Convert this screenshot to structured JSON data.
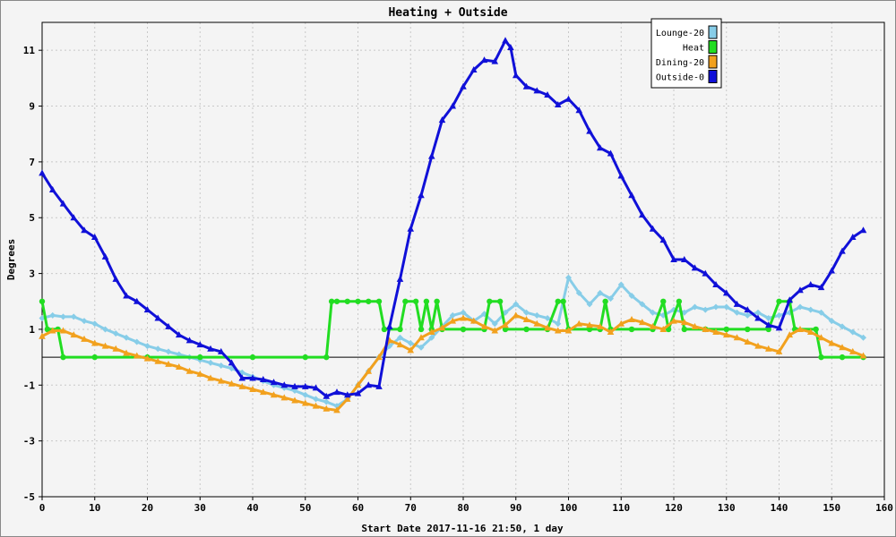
{
  "chart_data": {
    "type": "line",
    "title": "Heating + Outside",
    "xlabel": "Start Date 2017-11-16 21:50, 1 day",
    "ylabel": "Degrees",
    "xlim": [
      0,
      160
    ],
    "ylim": [
      -5,
      12
    ],
    "xticks": [
      0,
      10,
      20,
      30,
      40,
      50,
      60,
      70,
      80,
      90,
      100,
      110,
      120,
      130,
      140,
      150,
      160
    ],
    "yticks": [
      -5,
      -3,
      -1,
      1,
      3,
      5,
      7,
      9,
      11
    ],
    "grid": true,
    "zero_line": true,
    "legend_position": "top-right",
    "series": [
      {
        "name": "Lounge-20",
        "color": "#87cde8",
        "marker": "diamond",
        "points": [
          [
            0,
            1.4
          ],
          [
            2,
            1.5
          ],
          [
            4,
            1.45
          ],
          [
            6,
            1.45
          ],
          [
            8,
            1.3
          ],
          [
            10,
            1.2
          ],
          [
            12,
            1.0
          ],
          [
            14,
            0.85
          ],
          [
            16,
            0.7
          ],
          [
            18,
            0.55
          ],
          [
            20,
            0.4
          ],
          [
            22,
            0.3
          ],
          [
            24,
            0.2
          ],
          [
            26,
            0.1
          ],
          [
            28,
            0.0
          ],
          [
            30,
            -0.1
          ],
          [
            32,
            -0.2
          ],
          [
            34,
            -0.3
          ],
          [
            36,
            -0.4
          ],
          [
            38,
            -0.55
          ],
          [
            40,
            -0.7
          ],
          [
            42,
            -0.85
          ],
          [
            44,
            -1.0
          ],
          [
            46,
            -1.1
          ],
          [
            48,
            -1.2
          ],
          [
            50,
            -1.35
          ],
          [
            52,
            -1.5
          ],
          [
            54,
            -1.6
          ],
          [
            56,
            -1.75
          ],
          [
            58,
            -1.5
          ],
          [
            60,
            -1.0
          ],
          [
            62,
            -0.5
          ],
          [
            64,
            0.0
          ],
          [
            66,
            0.4
          ],
          [
            68,
            0.7
          ],
          [
            70,
            0.5
          ],
          [
            72,
            0.35
          ],
          [
            74,
            0.7
          ],
          [
            76,
            1.1
          ],
          [
            78,
            1.5
          ],
          [
            80,
            1.6
          ],
          [
            82,
            1.3
          ],
          [
            84,
            1.55
          ],
          [
            86,
            1.2
          ],
          [
            88,
            1.6
          ],
          [
            90,
            1.9
          ],
          [
            92,
            1.6
          ],
          [
            94,
            1.5
          ],
          [
            96,
            1.4
          ],
          [
            98,
            1.2
          ],
          [
            100,
            2.85
          ],
          [
            102,
            2.3
          ],
          [
            104,
            1.9
          ],
          [
            106,
            2.3
          ],
          [
            108,
            2.1
          ],
          [
            110,
            2.6
          ],
          [
            112,
            2.2
          ],
          [
            114,
            1.9
          ],
          [
            116,
            1.6
          ],
          [
            118,
            1.5
          ],
          [
            120,
            1.7
          ],
          [
            122,
            1.6
          ],
          [
            124,
            1.8
          ],
          [
            126,
            1.7
          ],
          [
            128,
            1.8
          ],
          [
            130,
            1.8
          ],
          [
            132,
            1.6
          ],
          [
            134,
            1.5
          ],
          [
            136,
            1.6
          ],
          [
            138,
            1.4
          ],
          [
            140,
            1.5
          ],
          [
            142,
            1.6
          ],
          [
            144,
            1.8
          ],
          [
            146,
            1.7
          ],
          [
            148,
            1.6
          ],
          [
            150,
            1.3
          ],
          [
            152,
            1.1
          ],
          [
            154,
            0.9
          ],
          [
            156,
            0.7
          ]
        ]
      },
      {
        "name": "Heat",
        "color": "#22dd22",
        "marker": "circle",
        "points": [
          [
            0,
            2
          ],
          [
            1,
            1
          ],
          [
            3,
            1
          ],
          [
            4,
            0
          ],
          [
            10,
            0
          ],
          [
            20,
            0
          ],
          [
            30,
            0
          ],
          [
            40,
            0
          ],
          [
            50,
            0
          ],
          [
            54,
            0
          ],
          [
            55,
            2
          ],
          [
            56,
            2
          ],
          [
            58,
            2
          ],
          [
            60,
            2
          ],
          [
            62,
            2
          ],
          [
            64,
            2
          ],
          [
            65,
            1
          ],
          [
            68,
            1
          ],
          [
            69,
            2
          ],
          [
            71,
            2
          ],
          [
            72,
            1
          ],
          [
            73,
            2
          ],
          [
            74,
            1
          ],
          [
            75,
            2
          ],
          [
            76,
            1
          ],
          [
            80,
            1
          ],
          [
            84,
            1
          ],
          [
            85,
            2
          ],
          [
            87,
            2
          ],
          [
            88,
            1
          ],
          [
            92,
            1
          ],
          [
            96,
            1
          ],
          [
            98,
            2
          ],
          [
            99,
            2
          ],
          [
            100,
            1
          ],
          [
            104,
            1
          ],
          [
            106,
            1
          ],
          [
            107,
            2
          ],
          [
            108,
            1
          ],
          [
            112,
            1
          ],
          [
            116,
            1
          ],
          [
            118,
            2
          ],
          [
            119,
            1
          ],
          [
            121,
            2
          ],
          [
            122,
            1
          ],
          [
            126,
            1
          ],
          [
            130,
            1
          ],
          [
            134,
            1
          ],
          [
            138,
            1
          ],
          [
            140,
            2
          ],
          [
            142,
            2
          ],
          [
            143,
            1
          ],
          [
            147,
            1
          ],
          [
            148,
            0
          ],
          [
            152,
            0
          ],
          [
            156,
            0
          ]
        ]
      },
      {
        "name": "Dining-20",
        "color": "#f2a11e",
        "marker": "triangle",
        "points": [
          [
            0,
            0.75
          ],
          [
            2,
            0.95
          ],
          [
            4,
            0.95
          ],
          [
            6,
            0.8
          ],
          [
            8,
            0.65
          ],
          [
            10,
            0.5
          ],
          [
            12,
            0.4
          ],
          [
            14,
            0.3
          ],
          [
            16,
            0.15
          ],
          [
            18,
            0.05
          ],
          [
            20,
            -0.05
          ],
          [
            22,
            -0.15
          ],
          [
            24,
            -0.25
          ],
          [
            26,
            -0.35
          ],
          [
            28,
            -0.5
          ],
          [
            30,
            -0.6
          ],
          [
            32,
            -0.75
          ],
          [
            34,
            -0.85
          ],
          [
            36,
            -0.95
          ],
          [
            38,
            -1.05
          ],
          [
            40,
            -1.15
          ],
          [
            42,
            -1.25
          ],
          [
            44,
            -1.35
          ],
          [
            46,
            -1.45
          ],
          [
            48,
            -1.55
          ],
          [
            50,
            -1.65
          ],
          [
            52,
            -1.75
          ],
          [
            54,
            -1.85
          ],
          [
            56,
            -1.9
          ],
          [
            58,
            -1.5
          ],
          [
            60,
            -1.0
          ],
          [
            62,
            -0.5
          ],
          [
            64,
            0.0
          ],
          [
            66,
            0.6
          ],
          [
            68,
            0.45
          ],
          [
            70,
            0.25
          ],
          [
            72,
            0.7
          ],
          [
            74,
            0.9
          ],
          [
            76,
            1.05
          ],
          [
            78,
            1.3
          ],
          [
            80,
            1.4
          ],
          [
            82,
            1.3
          ],
          [
            84,
            1.1
          ],
          [
            86,
            0.95
          ],
          [
            88,
            1.15
          ],
          [
            90,
            1.5
          ],
          [
            92,
            1.35
          ],
          [
            94,
            1.2
          ],
          [
            96,
            1.05
          ],
          [
            98,
            0.95
          ],
          [
            100,
            0.95
          ],
          [
            102,
            1.2
          ],
          [
            104,
            1.15
          ],
          [
            106,
            1.1
          ],
          [
            108,
            0.9
          ],
          [
            110,
            1.2
          ],
          [
            112,
            1.35
          ],
          [
            114,
            1.25
          ],
          [
            116,
            1.1
          ],
          [
            118,
            1.0
          ],
          [
            120,
            1.3
          ],
          [
            122,
            1.25
          ],
          [
            124,
            1.1
          ],
          [
            126,
            1.0
          ],
          [
            128,
            0.9
          ],
          [
            130,
            0.8
          ],
          [
            132,
            0.7
          ],
          [
            134,
            0.55
          ],
          [
            136,
            0.4
          ],
          [
            138,
            0.3
          ],
          [
            140,
            0.2
          ],
          [
            142,
            0.8
          ],
          [
            144,
            1.0
          ],
          [
            146,
            0.9
          ],
          [
            148,
            0.7
          ],
          [
            150,
            0.5
          ],
          [
            152,
            0.35
          ],
          [
            154,
            0.2
          ],
          [
            156,
            0.05
          ]
        ]
      },
      {
        "name": "Outside-0",
        "color": "#1010d8",
        "marker": "triangle",
        "points": [
          [
            0,
            6.6
          ],
          [
            2,
            6.0
          ],
          [
            4,
            5.5
          ],
          [
            6,
            5.0
          ],
          [
            8,
            4.55
          ],
          [
            10,
            4.3
          ],
          [
            12,
            3.6
          ],
          [
            14,
            2.8
          ],
          [
            16,
            2.2
          ],
          [
            18,
            2.0
          ],
          [
            20,
            1.7
          ],
          [
            22,
            1.4
          ],
          [
            24,
            1.1
          ],
          [
            26,
            0.8
          ],
          [
            28,
            0.6
          ],
          [
            30,
            0.45
          ],
          [
            32,
            0.3
          ],
          [
            34,
            0.2
          ],
          [
            36,
            -0.2
          ],
          [
            38,
            -0.75
          ],
          [
            40,
            -0.75
          ],
          [
            42,
            -0.8
          ],
          [
            44,
            -0.9
          ],
          [
            46,
            -1.0
          ],
          [
            48,
            -1.05
          ],
          [
            50,
            -1.05
          ],
          [
            52,
            -1.1
          ],
          [
            54,
            -1.4
          ],
          [
            56,
            -1.25
          ],
          [
            58,
            -1.35
          ],
          [
            60,
            -1.3
          ],
          [
            62,
            -1.0
          ],
          [
            64,
            -1.05
          ],
          [
            66,
            1.1
          ],
          [
            68,
            2.8
          ],
          [
            70,
            4.6
          ],
          [
            72,
            5.8
          ],
          [
            74,
            7.2
          ],
          [
            76,
            8.5
          ],
          [
            78,
            9.0
          ],
          [
            80,
            9.7
          ],
          [
            82,
            10.3
          ],
          [
            84,
            10.65
          ],
          [
            86,
            10.6
          ],
          [
            88,
            11.35
          ],
          [
            89,
            11.1
          ],
          [
            90,
            10.1
          ],
          [
            92,
            9.7
          ],
          [
            94,
            9.55
          ],
          [
            96,
            9.4
          ],
          [
            98,
            9.05
          ],
          [
            100,
            9.25
          ],
          [
            102,
            8.85
          ],
          [
            104,
            8.1
          ],
          [
            106,
            7.5
          ],
          [
            108,
            7.3
          ],
          [
            110,
            6.5
          ],
          [
            112,
            5.8
          ],
          [
            114,
            5.1
          ],
          [
            116,
            4.6
          ],
          [
            118,
            4.2
          ],
          [
            120,
            3.5
          ],
          [
            122,
            3.5
          ],
          [
            124,
            3.2
          ],
          [
            126,
            3.0
          ],
          [
            128,
            2.6
          ],
          [
            130,
            2.3
          ],
          [
            132,
            1.9
          ],
          [
            134,
            1.7
          ],
          [
            136,
            1.4
          ],
          [
            138,
            1.15
          ],
          [
            140,
            1.05
          ],
          [
            142,
            2.05
          ],
          [
            144,
            2.4
          ],
          [
            146,
            2.6
          ],
          [
            148,
            2.5
          ],
          [
            150,
            3.1
          ],
          [
            152,
            3.8
          ],
          [
            154,
            4.3
          ],
          [
            156,
            4.55
          ]
        ]
      }
    ]
  }
}
